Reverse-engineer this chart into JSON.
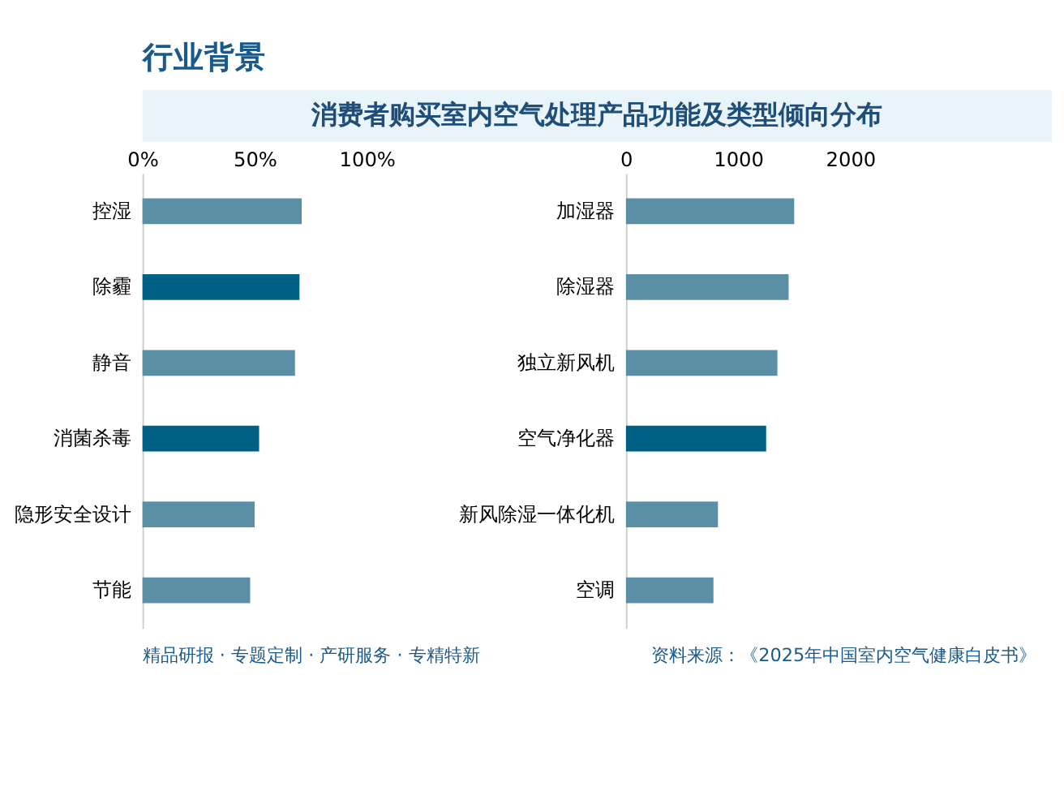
{
  "chart_data": [
    {
      "type": "bar",
      "orientation": "horizontal",
      "title": "消费者购买室内空气处理产品功能及类型倾向分布",
      "categories": [
        "控湿",
        "除霾",
        "静音",
        "消菌杀毒",
        "隐形安全设计",
        "节能"
      ],
      "values": [
        71,
        70,
        68,
        52,
        50,
        48
      ],
      "colors": [
        "#5b8fa5",
        "#005f84",
        "#5b8fa5",
        "#005f84",
        "#5b8fa5",
        "#5b8fa5"
      ],
      "xlim": [
        0,
        100
      ],
      "xticks": [
        {
          "value": 0,
          "label": "0%"
        },
        {
          "value": 50,
          "label": "50%"
        },
        {
          "value": 100,
          "label": "100%"
        }
      ],
      "grid": false,
      "annotations": [
        "行业背景",
        "精品研报 · 专题定制 · 产研服务 · 专精特新",
        "资料来源：《2025年中国室内空气健康白皮书》"
      ]
    },
    {
      "type": "bar",
      "orientation": "horizontal",
      "categories": [
        "加湿器",
        "除湿器",
        "独立新风机",
        "空气净化器",
        "新风除湿一体化机",
        "空调"
      ],
      "values": [
        1500,
        1450,
        1350,
        1250,
        820,
        780
      ],
      "colors": [
        "#5b8fa5",
        "#5b8fa5",
        "#5b8fa5",
        "#005f84",
        "#5b8fa5",
        "#5b8fa5"
      ],
      "xlim": [
        0,
        2000
      ],
      "xticks": [
        0,
        1000,
        2000
      ],
      "grid": false
    }
  ]
}
